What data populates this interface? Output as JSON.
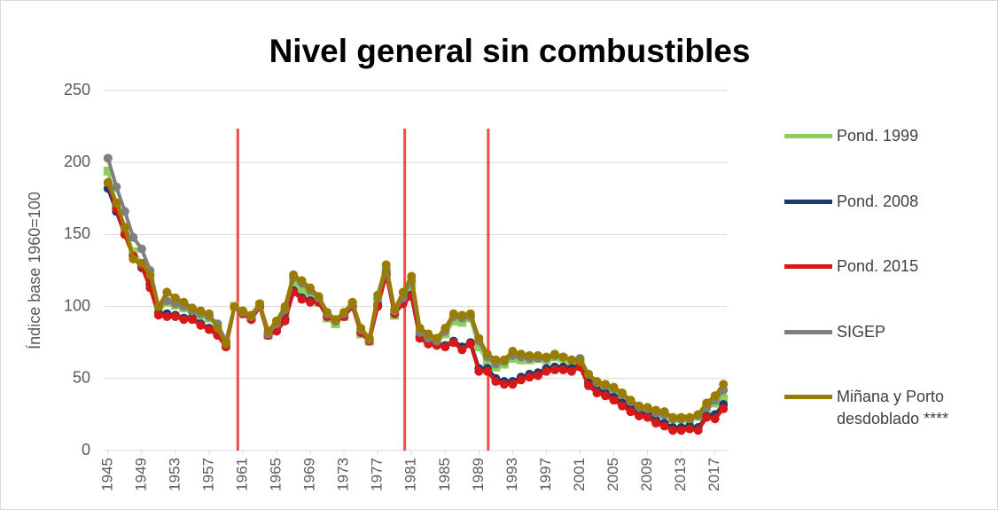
{
  "chart_data": {
    "type": "line",
    "title": "Nivel general sin combustibles",
    "y_label": "Índice base 1960=100",
    "x": [
      1945,
      1946,
      1947,
      1948,
      1949,
      1950,
      1951,
      1952,
      1953,
      1954,
      1955,
      1956,
      1957,
      1958,
      1959,
      1960,
      1961,
      1962,
      1963,
      1964,
      1965,
      1966,
      1967,
      1968,
      1969,
      1970,
      1971,
      1972,
      1973,
      1974,
      1975,
      1976,
      1977,
      1978,
      1979,
      1980,
      1981,
      1982,
      1983,
      1984,
      1985,
      1986,
      1987,
      1988,
      1989,
      1990,
      1991,
      1992,
      1993,
      1994,
      1995,
      1996,
      1997,
      1998,
      1999,
      2000,
      2001,
      2002,
      2003,
      2004,
      2005,
      2006,
      2007,
      2008,
      2009,
      2010,
      2011,
      2012,
      2013,
      2014,
      2015,
      2016,
      2017,
      2018
    ],
    "xlim": [
      1944.6,
      2018.4
    ],
    "xticks": [
      1945,
      1949,
      1953,
      1957,
      1961,
      1965,
      1969,
      1973,
      1977,
      1981,
      1985,
      1989,
      1993,
      1997,
      2001,
      2005,
      2009,
      2013,
      2017
    ],
    "ylim": [
      0,
      250
    ],
    "yticks": [
      0,
      50,
      100,
      150,
      200,
      250
    ],
    "grid": true,
    "vlines": [
      1960.4,
      1980.2,
      1990.1
    ],
    "vline_color": "#f04b4b",
    "series": [
      {
        "name": "Pond. 1999",
        "color": "#8fce5a",
        "marker": "square",
        "values": [
          194,
          170,
          153,
          138,
          130,
          118,
          97,
          103,
          101,
          99,
          96,
          94,
          92,
          86,
          74,
          100,
          95,
          92,
          101,
          80,
          86,
          95,
          115,
          110,
          106,
          103,
          92,
          88,
          93,
          101,
          81,
          76,
          103,
          124,
          94,
          104,
          115,
          79,
          77,
          75,
          81,
          90,
          89,
          92,
          72,
          62,
          58,
          60,
          64,
          63,
          63,
          64,
          63,
          65,
          64,
          62,
          62,
          51,
          46,
          44,
          42,
          38,
          33,
          29,
          28,
          26,
          25,
          22,
          22,
          22,
          24,
          29,
          33,
          36
        ]
      },
      {
        "name": "Pond. 2008",
        "color": "#1f3a6e",
        "marker": "circle",
        "values": [
          182,
          166,
          150,
          135,
          127,
          115,
          95,
          95,
          94,
          92,
          92,
          88,
          85,
          81,
          72,
          100,
          95,
          91,
          100,
          80,
          83,
          91,
          111,
          106,
          104,
          103,
          93,
          90,
          94,
          101,
          82,
          77,
          101,
          123,
          95,
          103,
          108,
          79,
          75,
          74,
          73,
          76,
          72,
          75,
          57,
          57,
          50,
          48,
          48,
          51,
          53,
          54,
          57,
          58,
          58,
          57,
          60,
          47,
          42,
          40,
          37,
          33,
          29,
          26,
          25,
          21,
          19,
          16,
          16,
          17,
          16,
          24,
          25,
          32
        ]
      },
      {
        "name": "Pond. 2015",
        "color": "#d81818",
        "marker": "circle",
        "values": [
          186,
          168,
          150,
          135,
          128,
          113,
          94,
          93,
          93,
          91,
          91,
          87,
          84,
          80,
          72,
          100,
          95,
          91,
          100,
          80,
          83,
          90,
          110,
          105,
          103,
          103,
          93,
          90,
          93,
          100,
          82,
          76,
          100,
          122,
          95,
          102,
          107,
          78,
          74,
          73,
          72,
          75,
          70,
          74,
          55,
          55,
          48,
          46,
          46,
          49,
          51,
          52,
          55,
          56,
          56,
          55,
          58,
          45,
          40,
          38,
          35,
          31,
          27,
          24,
          23,
          19,
          17,
          14,
          14,
          15,
          14,
          23,
          22,
          29
        ]
      },
      {
        "name": "SIGEP",
        "color": "#7f7f7f",
        "marker": "circle",
        "values": [
          203,
          183,
          166,
          148,
          140,
          125,
          100,
          104,
          102,
          100,
          97,
          95,
          93,
          88,
          76,
          100,
          96,
          93,
          101,
          81,
          88,
          98,
          120,
          116,
          111,
          106,
          95,
          90,
          95,
          102,
          84,
          77,
          106,
          126,
          97,
          106,
          118,
          82,
          78,
          76,
          83,
          93,
          92,
          93,
          76,
          65,
          60,
          62,
          66,
          65,
          64,
          64,
          64,
          66,
          65,
          63,
          64,
          53,
          47,
          45,
          43,
          39,
          34,
          30,
          29,
          26,
          25,
          22,
          22,
          22,
          24,
          30,
          35,
          42
        ]
      },
      {
        "name": "Miñana y Porto desdoblado ****",
        "color": "#9a7d00",
        "marker": "circle",
        "values": [
          186,
          172,
          155,
          133,
          130,
          122,
          100,
          110,
          106,
          103,
          99,
          97,
          95,
          85,
          74,
          100,
          97,
          94,
          102,
          83,
          90,
          100,
          122,
          118,
          113,
          107,
          96,
          91,
          96,
          103,
          85,
          78,
          108,
          129,
          98,
          110,
          121,
          85,
          81,
          78,
          85,
          95,
          94,
          95,
          78,
          67,
          63,
          63,
          69,
          67,
          66,
          66,
          65,
          67,
          65,
          63,
          62,
          53,
          48,
          46,
          44,
          40,
          35,
          31,
          30,
          28,
          27,
          23,
          23,
          23,
          25,
          33,
          38,
          46
        ]
      }
    ]
  }
}
